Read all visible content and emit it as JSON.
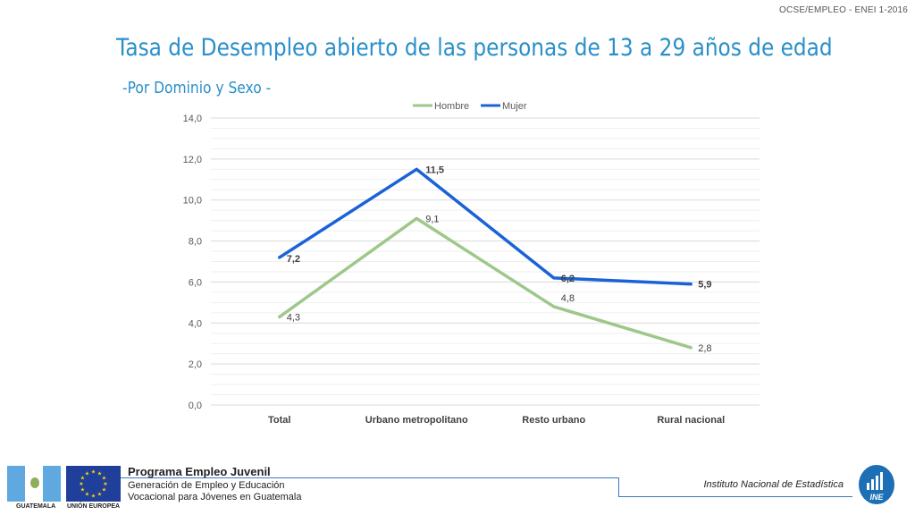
{
  "header_code": "OCSE/EMPLEO -  ENEI 1-2016",
  "title": "Tasa de Desempleo abierto de las personas de 13 a 29 años de edad",
  "subtitle": "-Por Dominio y Sexo -",
  "colors": {
    "hombre": "#9dc88a",
    "mujer": "#1a63d6",
    "title": "#2a8fc9",
    "grid": "#e0e0e0"
  },
  "chart_data": {
    "type": "line",
    "categories": [
      "Total",
      "Urbano metropolitano",
      "Resto urbano",
      "Rural nacional"
    ],
    "series": [
      {
        "name": "Hombre",
        "values": [
          4.3,
          9.1,
          4.8,
          2.8
        ],
        "labels": [
          "4,3",
          "9,1",
          "4,8",
          "2,8"
        ]
      },
      {
        "name": "Mujer",
        "values": [
          7.2,
          11.5,
          6.2,
          5.9
        ],
        "labels": [
          "7,2",
          "11,5",
          "6,2",
          "5,9"
        ]
      }
    ],
    "ylim": [
      0,
      14
    ],
    "yticks": [
      "0,0",
      "2,0",
      "4,0",
      "6,0",
      "8,0",
      "10,0",
      "12,0",
      "14,0"
    ],
    "legend_position": "top",
    "grid": true
  },
  "footer": {
    "program_title": "Programa Empleo Juvenil",
    "program_line1": "Generación de Empleo y Educación",
    "program_line2": "Vocacional para Jóvenes en Guatemala",
    "flag_gt_label": "GUATEMALA",
    "flag_eu_label": "UNIÓN EUROPEA",
    "institute": "Instituto Nacional de Estadística",
    "ine_logo_text": "INE"
  }
}
